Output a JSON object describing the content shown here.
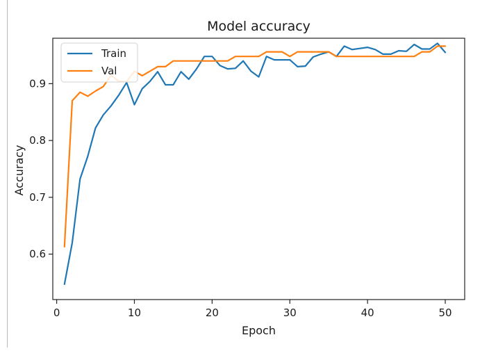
{
  "chart_data": {
    "type": "line",
    "title": "Model accuracy",
    "xlabel": "Epoch",
    "ylabel": "Accuracy",
    "xlim": [
      -0.5,
      52.5
    ],
    "ylim": [
      0.52,
      0.98
    ],
    "xticks": [
      0,
      10,
      20,
      30,
      40,
      50
    ],
    "yticks": [
      0.6,
      0.7,
      0.8,
      0.9
    ],
    "grid": false,
    "legend_position": "top-left",
    "series": [
      {
        "name": "Train",
        "color": "#1f77b4",
        "x": [
          1,
          2,
          3,
          4,
          5,
          6,
          7,
          8,
          9,
          10,
          11,
          12,
          13,
          14,
          15,
          16,
          17,
          18,
          19,
          20,
          21,
          22,
          23,
          24,
          25,
          26,
          27,
          28,
          29,
          30,
          31,
          32,
          33,
          34,
          35,
          36,
          37,
          38,
          39,
          40,
          41,
          42,
          43,
          44,
          45,
          46,
          47,
          48,
          49,
          50
        ],
        "values": [
          0.547,
          0.62,
          0.732,
          0.772,
          0.822,
          0.845,
          0.861,
          0.88,
          0.902,
          0.863,
          0.891,
          0.904,
          0.921,
          0.898,
          0.898,
          0.921,
          0.908,
          0.926,
          0.948,
          0.948,
          0.932,
          0.926,
          0.927,
          0.94,
          0.922,
          0.912,
          0.948,
          0.942,
          0.942,
          0.942,
          0.93,
          0.931,
          0.947,
          0.952,
          0.956,
          0.948,
          0.966,
          0.96,
          0.962,
          0.964,
          0.96,
          0.952,
          0.952,
          0.958,
          0.957,
          0.969,
          0.961,
          0.961,
          0.971,
          0.955
        ]
      },
      {
        "name": "Val",
        "color": "#ff7f0e",
        "x": [
          1,
          2,
          3,
          4,
          5,
          6,
          7,
          8,
          9,
          10,
          11,
          12,
          13,
          14,
          15,
          16,
          17,
          18,
          19,
          20,
          21,
          22,
          23,
          24,
          25,
          26,
          27,
          28,
          29,
          30,
          31,
          32,
          33,
          34,
          35,
          36,
          37,
          38,
          39,
          40,
          41,
          42,
          43,
          44,
          45,
          46,
          47,
          48,
          49,
          50
        ],
        "values": [
          0.613,
          0.87,
          0.885,
          0.878,
          0.887,
          0.895,
          0.915,
          0.904,
          0.904,
          0.922,
          0.914,
          0.922,
          0.93,
          0.93,
          0.94,
          0.94,
          0.94,
          0.94,
          0.94,
          0.94,
          0.94,
          0.94,
          0.948,
          0.948,
          0.948,
          0.948,
          0.956,
          0.956,
          0.956,
          0.948,
          0.956,
          0.956,
          0.956,
          0.956,
          0.956,
          0.948,
          0.948,
          0.948,
          0.948,
          0.948,
          0.948,
          0.948,
          0.948,
          0.948,
          0.948,
          0.948,
          0.956,
          0.956,
          0.966,
          0.966
        ]
      }
    ]
  }
}
